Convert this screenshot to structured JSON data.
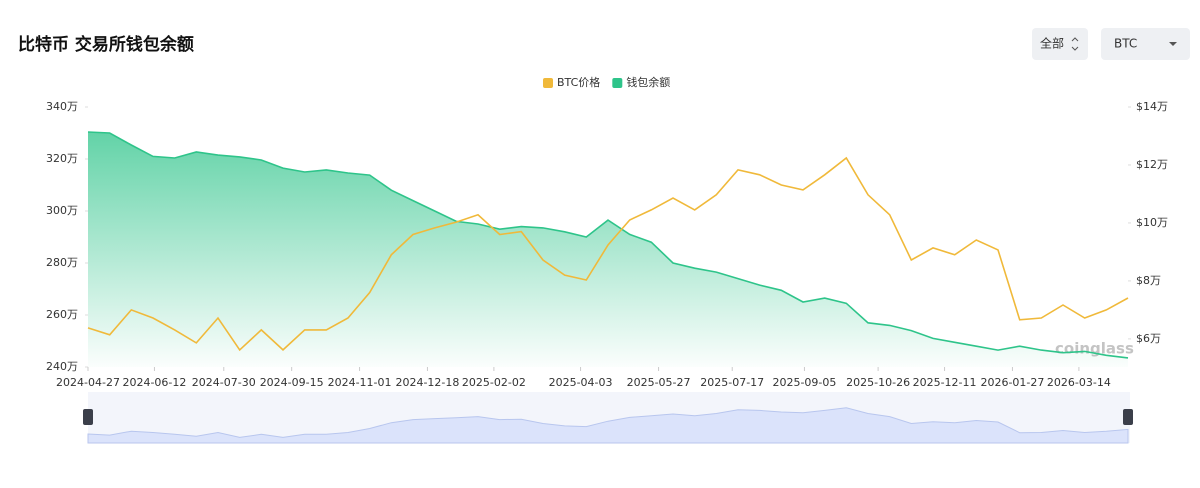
{
  "header": {
    "title": "比特币 交易所钱包余额"
  },
  "controls": {
    "range": "全部",
    "asset": "BTC"
  },
  "chart_data": {
    "type": "line",
    "x": [
      "2024-04-27",
      "2024-05-12",
      "2024-05-27",
      "2024-06-11",
      "2024-06-26",
      "2024-07-11",
      "2024-07-26",
      "2024-08-10",
      "2024-08-25",
      "2024-09-09",
      "2024-09-24",
      "2024-10-09",
      "2024-10-24",
      "2024-11-08",
      "2024-11-23",
      "2024-12-08",
      "2024-12-23",
      "2025-01-07",
      "2025-01-22",
      "2025-02-06",
      "2025-02-21",
      "2025-03-08",
      "2025-03-23",
      "2025-04-07",
      "2025-04-22",
      "2025-05-07",
      "2025-05-22",
      "2025-06-06",
      "2025-06-21",
      "2025-07-06",
      "2025-07-21",
      "2025-08-05",
      "2025-08-20",
      "2025-09-04",
      "2025-09-19",
      "2025-10-04",
      "2025-10-19",
      "2025-11-03",
      "2025-11-18",
      "2025-12-03",
      "2025-12-18",
      "2026-01-02",
      "2026-01-17",
      "2026-02-01",
      "2026-02-16",
      "2026-03-03",
      "2026-03-18",
      "2026-04-02",
      "2026-04-17"
    ],
    "series": [
      {
        "name": "BTC价格",
        "color": "#f0b93a",
        "axis": "y2",
        "values": [
          6.38,
          6.14,
          7.0,
          6.72,
          6.31,
          5.86,
          6.72,
          5.62,
          6.31,
          5.62,
          6.31,
          6.31,
          6.72,
          7.6,
          8.9,
          9.6,
          9.83,
          10.03,
          10.28,
          9.6,
          9.7,
          8.72,
          8.2,
          8.03,
          9.24,
          10.1,
          10.45,
          10.86,
          10.45,
          10.97,
          11.83,
          11.66,
          11.31,
          11.14,
          11.66,
          12.24,
          10.97,
          10.28,
          8.72,
          9.14,
          8.9,
          9.41,
          9.07,
          6.66,
          6.72,
          7.17,
          6.72,
          7.0,
          7.41
        ]
      },
      {
        "name": "钱包余额",
        "color": "#2ec48a",
        "values": [
          330.4,
          330,
          325.4,
          321,
          320.4,
          322.7,
          321.5,
          320.8,
          319.6,
          316.5,
          315,
          315.8,
          314.6,
          313.8,
          308,
          304,
          300,
          296,
          295,
          293,
          294,
          293.5,
          292,
          290,
          296.5,
          291,
          288,
          280,
          278,
          276.5,
          274,
          271.5,
          269.5,
          265,
          266.5,
          264.5,
          257,
          256,
          254,
          251,
          249.5,
          248,
          246.5,
          248,
          246.5,
          245.5,
          246,
          244.5,
          243.5
        ]
      }
    ],
    "xlim": [
      "2024-04-27",
      "2026-04-17"
    ],
    "xticks": [
      "2024-04-27",
      "2024-06-12",
      "2024-07-30",
      "2024-09-15",
      "2024-11-01",
      "2024-12-18",
      "2025-02-02",
      "2025-04-03",
      "2025-05-27",
      "2025-07-17",
      "2025-09-05",
      "2025-10-26",
      "2025-12-11",
      "2026-01-27",
      "2026-03-14"
    ],
    "ylim": [
      240,
      340
    ],
    "yticks": [
      {
        "value": 240,
        "label": "240万"
      },
      {
        "value": 260,
        "label": "260万"
      },
      {
        "value": 280,
        "label": "280万"
      },
      {
        "value": 300,
        "label": "300万"
      },
      {
        "value": 320,
        "label": "320万"
      },
      {
        "value": 340,
        "label": "340万"
      }
    ],
    "y2lim": [
      5.03,
      14
    ],
    "y2ticks": [
      {
        "value": 6,
        "label": "$6万"
      },
      {
        "value": 8,
        "label": "$8万"
      },
      {
        "value": 10,
        "label": "$10万"
      },
      {
        "value": 12,
        "label": "$12万"
      },
      {
        "value": 14,
        "label": "$14万"
      }
    ],
    "watermark": "coinglass"
  }
}
